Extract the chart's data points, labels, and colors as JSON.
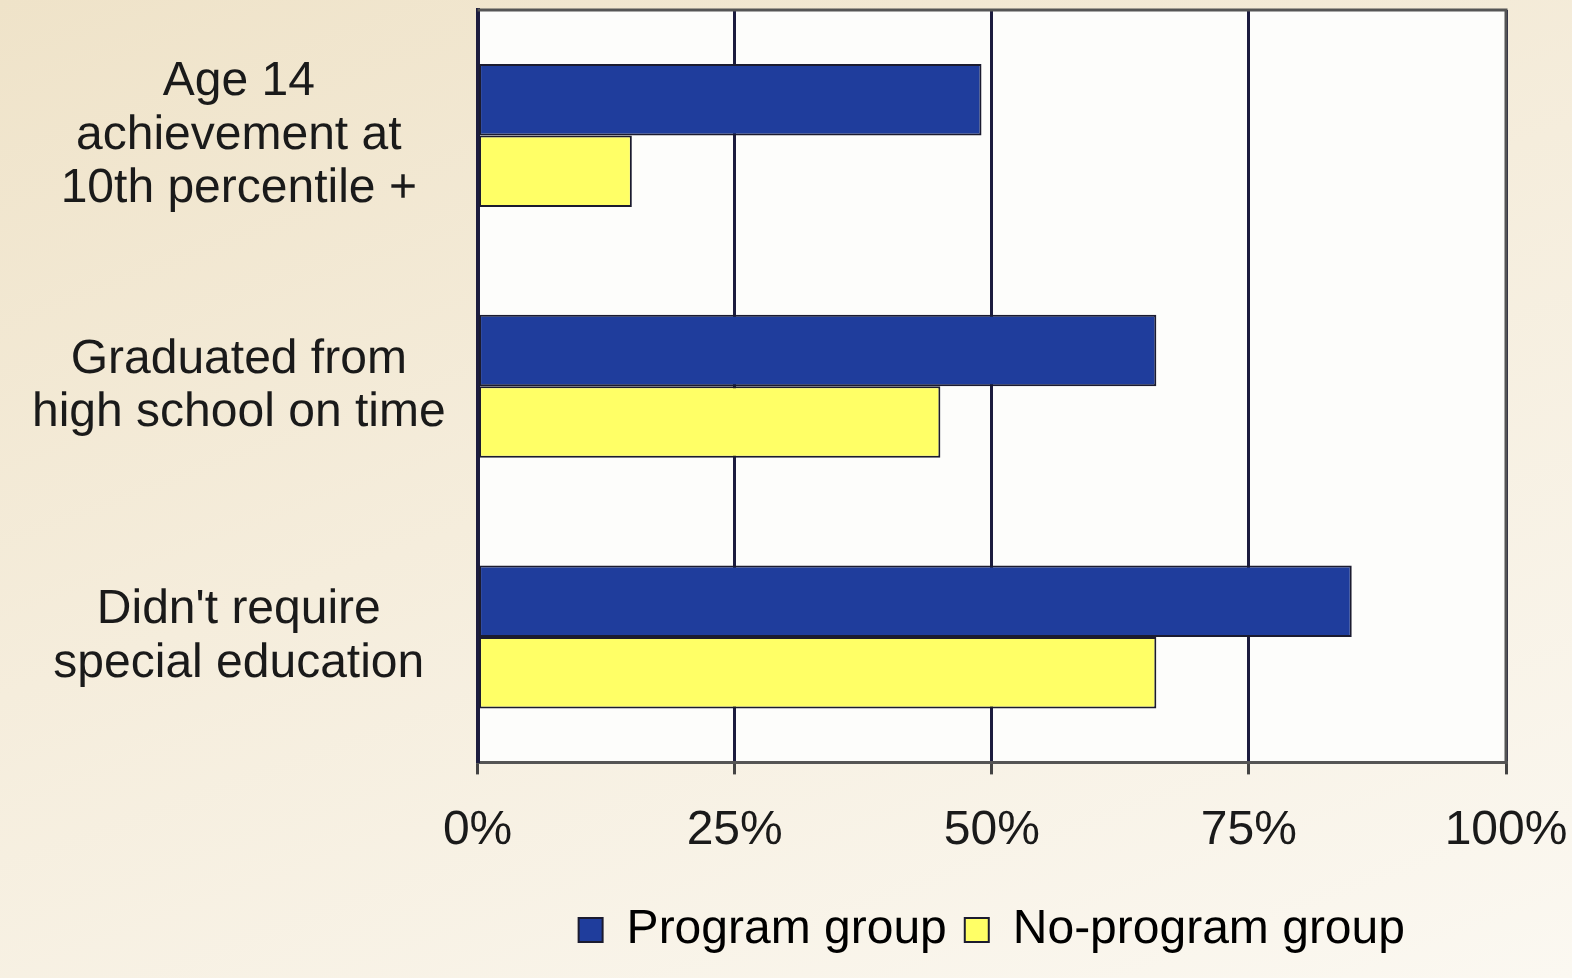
{
  "chart_data": {
    "type": "bar",
    "orientation": "horizontal",
    "categories": [
      "Age 14\nachievement at\n10th percentile +",
      "Graduated from\nhigh school on time",
      "Didn't require\nspecial education"
    ],
    "series": [
      {
        "name": "Program group",
        "color": "#1f3d9c",
        "values": [
          49,
          66,
          85
        ]
      },
      {
        "name": "No-program group",
        "color": "#ffff66",
        "values": [
          15,
          45,
          66
        ]
      }
    ],
    "xlim": [
      0,
      100
    ],
    "xticks": [
      {
        "value": 0,
        "label": "0%"
      },
      {
        "value": 25,
        "label": "25%"
      },
      {
        "value": 50,
        "label": "50%"
      },
      {
        "value": 75,
        "label": "75%"
      },
      {
        "value": 100,
        "label": "100%"
      }
    ],
    "grid": "x",
    "legend": "bottom"
  }
}
